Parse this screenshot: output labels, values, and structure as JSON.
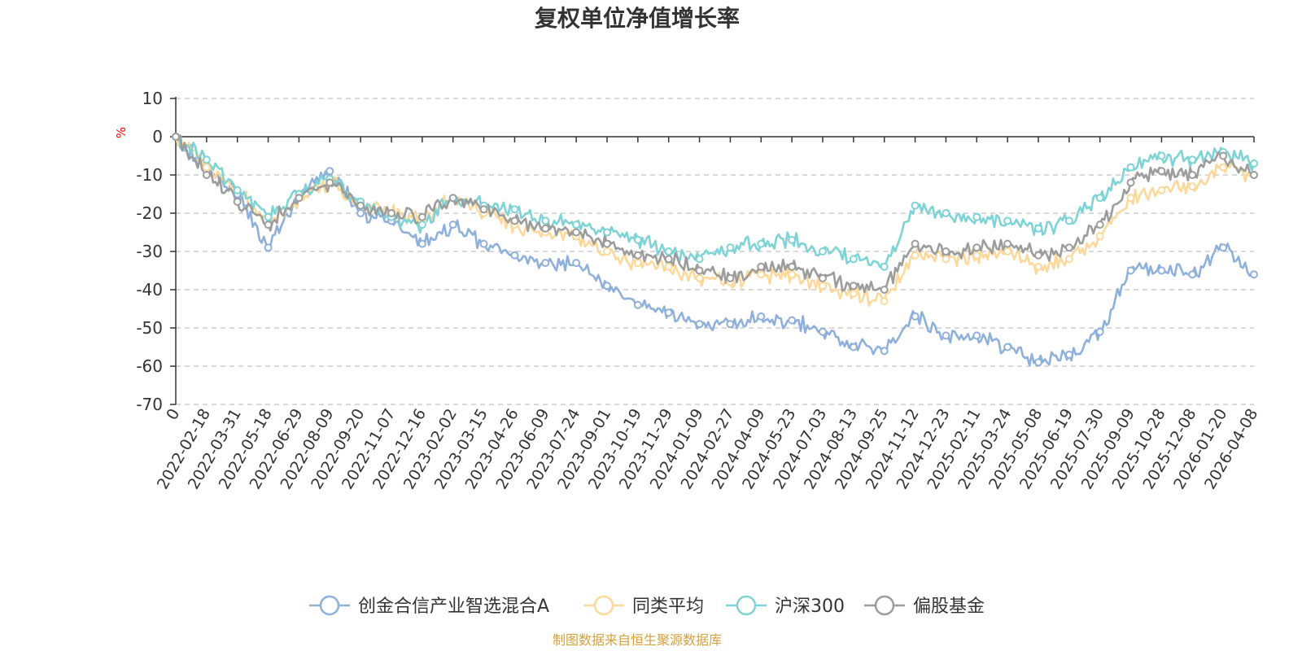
{
  "chart_data": {
    "type": "line",
    "title": "复权单位净值增长率",
    "ylabel": "%",
    "ylim": [
      -70,
      10
    ],
    "yticks": [
      10,
      0,
      -10,
      -20,
      -30,
      -40,
      -50,
      -60,
      -70
    ],
    "grid": true,
    "legend_position": "bottom",
    "x_tick_labels": [
      "0",
      "2022-02-18",
      "2022-03-31",
      "2022-05-18",
      "2022-06-29",
      "2022-08-09",
      "2022-09-20",
      "2022-11-07",
      "2022-12-16",
      "2023-02-02",
      "2023-03-15",
      "2023-04-26",
      "2023-06-09",
      "2023-07-24",
      "2023-09-01",
      "2023-10-19",
      "2023-11-29",
      "2024-01-09",
      "2024-02-27",
      "2024-04-09",
      "2024-05-23",
      "2024-07-03",
      "2024-08-13",
      "2024-09-25",
      "2024-11-12",
      "2024-12-23",
      "2025-02-11",
      "2025-03-24",
      "2025-05-08",
      "2025-06-19",
      "2025-07-30",
      "2025-09-09",
      "2025-10-28",
      "2025-12-08",
      "2026-01-20",
      "2026-04-08"
    ],
    "x": [
      0,
      1,
      2,
      3,
      4,
      5,
      6,
      7,
      8,
      9,
      10,
      11,
      12,
      13,
      14,
      15,
      16,
      17,
      18,
      19,
      20,
      21,
      22,
      23,
      24,
      25,
      26,
      27,
      28,
      29,
      30,
      31,
      32,
      33,
      34,
      35
    ],
    "series": [
      {
        "name": "创金合信产业智选混合A",
        "color": "#8eb0da",
        "values": [
          0,
          -9,
          -15,
          -29,
          -15,
          -9,
          -20,
          -22,
          -28,
          -23,
          -28,
          -31,
          -33,
          -33,
          -39,
          -44,
          -46,
          -49,
          -49,
          -47,
          -48,
          -51,
          -55,
          -56,
          -47,
          -52,
          -52,
          -55,
          -59,
          -57,
          -51,
          -35,
          -35,
          -36,
          -29,
          -36
        ]
      },
      {
        "name": "同类平均",
        "color": "#fcd99a",
        "values": [
          0,
          -8,
          -14,
          -23,
          -16,
          -12,
          -17,
          -20,
          -22,
          -16,
          -20,
          -23,
          -25,
          -26,
          -30,
          -33,
          -34,
          -37,
          -38,
          -36,
          -36,
          -39,
          -41,
          -43,
          -31,
          -32,
          -31,
          -30,
          -34,
          -32,
          -26,
          -16,
          -14,
          -13,
          -8,
          -10
        ]
      },
      {
        "name": "沪深300",
        "color": "#7dd3d5",
        "values": [
          0,
          -6,
          -14,
          -21,
          -15,
          -11,
          -17,
          -21,
          -23,
          -16,
          -18,
          -19,
          -22,
          -23,
          -25,
          -27,
          -30,
          -32,
          -29,
          -28,
          -27,
          -30,
          -32,
          -34,
          -18,
          -20,
          -21,
          -22,
          -24,
          -22,
          -16,
          -8,
          -5,
          -6,
          -4,
          -7
        ]
      },
      {
        "name": "偏股基金",
        "color": "#9c9c9c",
        "values": [
          0,
          -10,
          -17,
          -23,
          -16,
          -12,
          -18,
          -20,
          -21,
          -16,
          -19,
          -22,
          -24,
          -25,
          -28,
          -31,
          -32,
          -35,
          -37,
          -34,
          -34,
          -37,
          -39,
          -40,
          -28,
          -30,
          -29,
          -28,
          -31,
          -29,
          -23,
          -12,
          -9,
          -10,
          -5,
          -10
        ]
      }
    ]
  },
  "source": "制图数据来自恒生聚源数据库"
}
